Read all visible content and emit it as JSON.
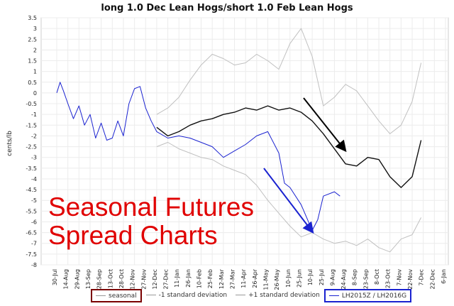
{
  "chart_data": {
    "type": "line",
    "title": "long 1.0 Dec Lean Hogs/short 1.0 Feb Lean Hogs",
    "ylabel": "cents/lb",
    "ylim": [
      -8,
      3.5
    ],
    "y_ticks": [
      "3.5",
      "3",
      "2.5",
      "2",
      "1.5",
      "1",
      "0.5",
      "0",
      "-0.5",
      "-1",
      "-1.5",
      "-2",
      "-2.5",
      "-3",
      "-3.5",
      "-4",
      "-4.5",
      "-5",
      "-5.5",
      "-6",
      "-6.5",
      "-7",
      "-7.5",
      "-8"
    ],
    "x_ticks": [
      "30-Jul",
      "14-Aug",
      "29-Aug",
      "13-Sep",
      "28-Sep",
      "13-Oct",
      "28-Oct",
      "12-Nov",
      "27-Nov",
      "12-Dec",
      "27-Dec",
      "11-Jan",
      "26-Jan",
      "10-Feb",
      "25-Feb",
      "12-Mar",
      "27-Mar",
      "11-Apr",
      "26-Apr",
      "11-May",
      "26-May",
      "10-Jun",
      "25-Jun",
      "10-Jul",
      "25-Jul",
      "9-Aug",
      "24-Aug",
      "8-Sep",
      "23-Sep",
      "8-Oct",
      "23-Oct",
      "7-Nov",
      "22-Nov",
      "7-Dec",
      "22-Dec",
      "6-Jan"
    ],
    "series": [
      {
        "name": "seasonal",
        "color": "#111111",
        "points": [
          [
            9,
            -1.6
          ],
          [
            10,
            -2.0
          ],
          [
            11,
            -1.8
          ],
          [
            12,
            -1.5
          ],
          [
            13,
            -1.3
          ],
          [
            14,
            -1.2
          ],
          [
            15,
            -1.0
          ],
          [
            16,
            -0.9
          ],
          [
            17,
            -0.7
          ],
          [
            18,
            -0.8
          ],
          [
            19,
            -0.6
          ],
          [
            20,
            -0.8
          ],
          [
            21,
            -0.7
          ],
          [
            22,
            -0.9
          ],
          [
            23,
            -1.3
          ],
          [
            24,
            -1.9
          ],
          [
            25,
            -2.6
          ],
          [
            26,
            -3.3
          ],
          [
            27,
            -3.4
          ],
          [
            28,
            -3.0
          ],
          [
            29,
            -3.1
          ],
          [
            30,
            -3.9
          ],
          [
            31,
            -4.4
          ],
          [
            32,
            -3.9
          ],
          [
            32.8,
            -2.2
          ]
        ]
      },
      {
        "name": "-1 standard deviation",
        "color": "#c0c0c0",
        "points": [
          [
            9,
            -2.5
          ],
          [
            10,
            -2.3
          ],
          [
            11,
            -2.6
          ],
          [
            12,
            -2.8
          ],
          [
            13,
            -3.0
          ],
          [
            14,
            -3.1
          ],
          [
            15,
            -3.4
          ],
          [
            16,
            -3.6
          ],
          [
            17,
            -3.8
          ],
          [
            18,
            -4.3
          ],
          [
            19,
            -5.0
          ],
          [
            20,
            -5.6
          ],
          [
            21,
            -6.2
          ],
          [
            22,
            -6.7
          ],
          [
            23,
            -6.5
          ],
          [
            24,
            -6.8
          ],
          [
            25,
            -7.0
          ],
          [
            26,
            -6.9
          ],
          [
            27,
            -7.1
          ],
          [
            28,
            -6.8
          ],
          [
            29,
            -7.2
          ],
          [
            30,
            -7.4
          ],
          [
            31,
            -6.8
          ],
          [
            32,
            -6.6
          ],
          [
            32.8,
            -5.8
          ]
        ]
      },
      {
        "name": "+1 standard deviation",
        "color": "#c0c0c0",
        "points": [
          [
            9,
            -1.0
          ],
          [
            10,
            -0.7
          ],
          [
            11,
            -0.2
          ],
          [
            12,
            0.6
          ],
          [
            13,
            1.3
          ],
          [
            14,
            1.8
          ],
          [
            15,
            1.6
          ],
          [
            16,
            1.3
          ],
          [
            17,
            1.4
          ],
          [
            18,
            1.8
          ],
          [
            19,
            1.5
          ],
          [
            20,
            1.1
          ],
          [
            21,
            2.3
          ],
          [
            22,
            3.0
          ],
          [
            23,
            1.7
          ],
          [
            24,
            -0.6
          ],
          [
            25,
            -0.2
          ],
          [
            26,
            0.4
          ],
          [
            27,
            0.1
          ],
          [
            28,
            -0.6
          ],
          [
            29,
            -1.3
          ],
          [
            30,
            -1.9
          ],
          [
            31,
            -1.5
          ],
          [
            32,
            -0.4
          ],
          [
            32.8,
            1.4
          ]
        ]
      },
      {
        "name": "LH2015Z / LH2016G",
        "color": "#1a22d0",
        "points": [
          [
            0,
            0.0
          ],
          [
            0.3,
            0.5
          ],
          [
            0.6,
            0.1
          ],
          [
            1,
            -0.5
          ],
          [
            1.5,
            -1.2
          ],
          [
            2,
            -0.6
          ],
          [
            2.5,
            -1.5
          ],
          [
            3,
            -1.0
          ],
          [
            3.5,
            -2.1
          ],
          [
            4,
            -1.4
          ],
          [
            4.5,
            -2.2
          ],
          [
            5,
            -2.1
          ],
          [
            5.5,
            -1.3
          ],
          [
            6,
            -2.0
          ],
          [
            6.5,
            -0.5
          ],
          [
            7,
            0.2
          ],
          [
            7.5,
            0.3
          ],
          [
            8,
            -0.7
          ],
          [
            8.5,
            -1.3
          ],
          [
            9,
            -1.8
          ],
          [
            10,
            -2.1
          ],
          [
            11,
            -2.0
          ],
          [
            12,
            -2.1
          ],
          [
            13,
            -2.3
          ],
          [
            14,
            -2.5
          ],
          [
            15,
            -3.0
          ],
          [
            16,
            -2.7
          ],
          [
            17,
            -2.4
          ],
          [
            18,
            -2.0
          ],
          [
            19,
            -1.8
          ],
          [
            20,
            -2.8
          ],
          [
            20.5,
            -4.2
          ],
          [
            21,
            -4.4
          ],
          [
            22,
            -5.2
          ],
          [
            23,
            -6.4
          ],
          [
            23.5,
            -5.9
          ],
          [
            24,
            -4.8
          ],
          [
            25,
            -4.6
          ],
          [
            25.5,
            -4.8
          ]
        ]
      }
    ],
    "annotations": [
      "Seasonal Futures",
      "Spread Charts"
    ],
    "legend": [
      "seasonal",
      "-1 standard deviation",
      "+1 standard deviation",
      "LH2015Z / LH2016G"
    ],
    "grid": true,
    "legend_position": "bottom"
  }
}
